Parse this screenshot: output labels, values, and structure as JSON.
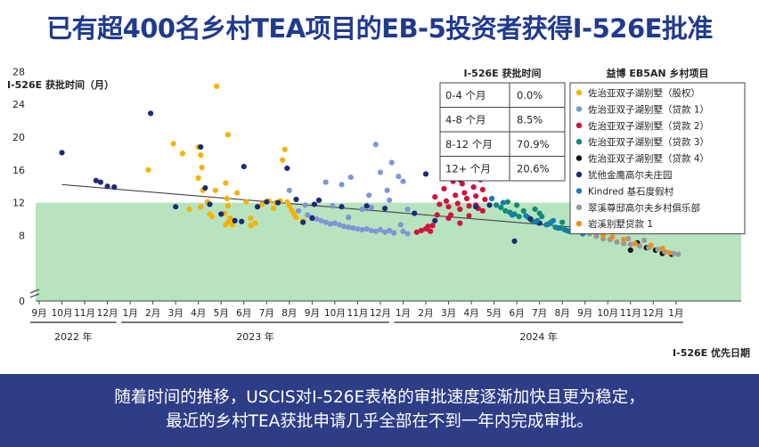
{
  "title": "已有超400名乡村TEA项目的EB-5投资者获得I-526E批准",
  "footer": {
    "line1": "随着时间的推移，USCIS对I-526E表格的审批速度逐渐加快且更为稳定，",
    "line2": "最近的乡村TEA获批申请几乎全部在不到一年内完成审批。"
  },
  "chart_data": {
    "type": "scatter",
    "ylabel": "I-526E 获批时间（月）",
    "xlabel": "I-526E 优先日期",
    "ylim": [
      0,
      28
    ],
    "yticks": [
      0,
      8,
      12,
      16,
      20,
      24,
      28
    ],
    "shaded_band": {
      "from": 0,
      "to": 12,
      "color": "#b7e4bf"
    },
    "trendline": {
      "start": [
        "2022-10",
        14.2
      ],
      "end": [
        "2024-12",
        8.2
      ]
    },
    "x_ticks": [
      "9月",
      "10月",
      "11月",
      "12月",
      "1月",
      "2月",
      "3月",
      "4月",
      "5月",
      "6月",
      "7月",
      "8月",
      "9月",
      "10月",
      "11月",
      "12月",
      "1月",
      "2月",
      "3月",
      "4月",
      "5月",
      "6月",
      "7月",
      "8月",
      "9月",
      "10月",
      "11月",
      "12月",
      "1月"
    ],
    "year_labels": [
      "2022 年",
      "2023 年",
      "2024 年"
    ],
    "approval_table": {
      "header": "I-526E 获批时间",
      "rows": [
        {
          "range": "0-4 个月",
          "pct": "0.0%"
        },
        {
          "range": "4-8 个月",
          "pct": "8.5%"
        },
        {
          "range": "8-12 个月",
          "pct": "70.9%"
        },
        {
          "range": "12+ 个月",
          "pct": "20.6%"
        }
      ]
    },
    "legend_title": "益博 EB5AN 乡村项目",
    "series": [
      {
        "name": "佐治亚双子湖别墅（股权）",
        "color": "#f5b300",
        "points": [
          [
            5.9,
            19.2
          ],
          [
            6.3,
            18
          ],
          [
            6.6,
            11.2
          ],
          [
            7.0,
            18.8
          ],
          [
            7.1,
            17.8
          ],
          [
            7.15,
            16.3
          ],
          [
            7.0,
            15
          ],
          [
            7.2,
            13.5
          ],
          [
            7.1,
            11.5
          ],
          [
            7.4,
            12.1
          ],
          [
            7.5,
            10.6
          ],
          [
            7.6,
            10.3
          ],
          [
            7.8,
            26.2
          ],
          [
            7.75,
            13.5
          ],
          [
            8.3,
            20.3
          ],
          [
            8.2,
            14.4
          ],
          [
            8.25,
            12.5
          ],
          [
            8.3,
            11.6
          ],
          [
            8.15,
            10.7
          ],
          [
            8.4,
            10.1
          ],
          [
            8.3,
            9.6
          ],
          [
            8.2,
            9.3
          ],
          [
            8.5,
            9.3
          ],
          [
            8.7,
            13.2
          ],
          [
            9.1,
            12.1
          ],
          [
            9.3,
            10.1
          ],
          [
            9.5,
            9.5
          ],
          [
            9.8,
            11.8
          ],
          [
            10.1,
            12.2
          ],
          [
            10.3,
            11.3
          ],
          [
            10.7,
            17.2
          ],
          [
            10.8,
            18.5
          ],
          [
            10.6,
            12.2
          ],
          [
            10.9,
            12.1
          ],
          [
            11.1,
            11.1
          ],
          [
            11.3,
            10.2
          ],
          [
            11.6,
            9.8
          ],
          [
            11.0,
            11.6
          ],
          [
            4.8,
            16.0
          ],
          [
            9.3,
            9.2
          ],
          [
            10.4,
            12.0
          ],
          [
            11.2,
            10.6
          ]
        ]
      },
      {
        "name": "佐治亚双子湖别墅（贷款 1）",
        "color": "#7d96d6",
        "points": [
          [
            11.0,
            13.5
          ],
          [
            11.4,
            11.0
          ],
          [
            11.8,
            10.5
          ],
          [
            12.0,
            10.2
          ],
          [
            12.2,
            10.0
          ],
          [
            12.4,
            9.8
          ],
          [
            12.6,
            9.6
          ],
          [
            12.8,
            9.4
          ],
          [
            13.0,
            9.5
          ],
          [
            13.2,
            9.3
          ],
          [
            13.4,
            9.1
          ],
          [
            13.6,
            9.0
          ],
          [
            13.8,
            8.9
          ],
          [
            14.0,
            8.8
          ],
          [
            14.2,
            8.7
          ],
          [
            14.4,
            8.8
          ],
          [
            14.6,
            8.6
          ],
          [
            14.8,
            8.5
          ],
          [
            15.0,
            8.7
          ],
          [
            15.2,
            8.4
          ],
          [
            15.4,
            8.6
          ],
          [
            15.6,
            8.3
          ],
          [
            12.6,
            14.5
          ],
          [
            13.3,
            14.2
          ],
          [
            13.7,
            15.1
          ],
          [
            14.5,
            12.9
          ],
          [
            14.8,
            19.1
          ],
          [
            15.0,
            15.7
          ],
          [
            15.3,
            13.5
          ],
          [
            15.5,
            16.9
          ],
          [
            15.4,
            12.3
          ],
          [
            15.8,
            15.2
          ],
          [
            16.0,
            14.6
          ],
          [
            16.2,
            11.2
          ],
          [
            14.2,
            11.2
          ],
          [
            14.6,
            11.4
          ],
          [
            13.6,
            10.2
          ],
          [
            12.9,
            11.6
          ],
          [
            11.7,
            11.7
          ],
          [
            16.0,
            8.5
          ],
          [
            16.2,
            8.2
          ],
          [
            15.9,
            9.3
          ]
        ]
      },
      {
        "name": "佐治亚双子湖别墅（贷款 2）",
        "color": "#d3113c",
        "points": [
          [
            16.6,
            8.4
          ],
          [
            16.8,
            8.6
          ],
          [
            17.0,
            8.8
          ],
          [
            17.2,
            8.5
          ],
          [
            17.3,
            9.2
          ],
          [
            17.5,
            10.5
          ],
          [
            17.4,
            12.7
          ],
          [
            17.6,
            11.8
          ],
          [
            17.8,
            13.7
          ],
          [
            17.9,
            12.2
          ],
          [
            18.0,
            11.5
          ],
          [
            18.1,
            10.5
          ],
          [
            18.2,
            14.6
          ],
          [
            18.3,
            12.9
          ],
          [
            18.4,
            11.9
          ],
          [
            18.5,
            11.2
          ],
          [
            18.6,
            14.3
          ],
          [
            18.7,
            13.2
          ],
          [
            18.8,
            12.5
          ],
          [
            18.9,
            11.6
          ],
          [
            19.0,
            15.0
          ],
          [
            19.1,
            13.9
          ],
          [
            19.2,
            12.8
          ],
          [
            19.3,
            11.3
          ],
          [
            19.4,
            14.8
          ],
          [
            19.5,
            13.6
          ],
          [
            19.6,
            12.4
          ],
          [
            18.0,
            10.1
          ],
          [
            17.1,
            9.1
          ],
          [
            18.9,
            10.4
          ],
          [
            19.2,
            11.7
          ],
          [
            18.5,
            9.5
          ],
          [
            19.5,
            11.0
          ]
        ]
      },
      {
        "name": "佐治亚双子湖别墅（贷款 3）",
        "color": "#0f8a75",
        "points": [
          [
            20.1,
            11.7
          ],
          [
            20.3,
            11.4
          ],
          [
            20.5,
            11.0
          ],
          [
            20.7,
            10.8
          ],
          [
            20.9,
            10.6
          ],
          [
            21.1,
            10.3
          ],
          [
            21.3,
            11.0
          ],
          [
            21.5,
            10.2
          ],
          [
            21.7,
            9.7
          ],
          [
            21.9,
            9.6
          ],
          [
            22.1,
            10.3
          ],
          [
            22.3,
            9.3
          ],
          [
            22.5,
            9.6
          ],
          [
            22.7,
            9.0
          ],
          [
            22.9,
            8.9
          ],
          [
            23.1,
            8.7
          ],
          [
            23.3,
            8.5
          ],
          [
            21.0,
            11.7
          ],
          [
            21.8,
            11.2
          ],
          [
            22.0,
            10.7
          ],
          [
            20.6,
            12.1
          ],
          [
            23.0,
            9.6
          ]
        ]
      },
      {
        "name": "佐治亚双子湖别墅（贷款 4）",
        "color": "#111111",
        "points": [
          [
            26.0,
            6.2
          ],
          [
            26.3,
            7.1
          ],
          [
            26.7,
            6.5
          ],
          [
            27.1,
            6.2
          ],
          [
            27.4,
            5.8
          ],
          [
            27.8,
            5.7
          ]
        ]
      },
      {
        "name": "犹他金鹰高尔夫庄园",
        "color": "#1c2a78",
        "points": [
          [
            1.0,
            18.1
          ],
          [
            2.5,
            14.7
          ],
          [
            2.7,
            14.5
          ],
          [
            3.0,
            14.0
          ],
          [
            3.3,
            13.9
          ],
          [
            4.9,
            22.9
          ],
          [
            6.0,
            11.5
          ],
          [
            7.1,
            18.8
          ],
          [
            7.3,
            13.8
          ],
          [
            7.5,
            11.8
          ],
          [
            8.0,
            10.6
          ],
          [
            8.6,
            9.8
          ],
          [
            9.0,
            16.4
          ],
          [
            9.6,
            11.5
          ],
          [
            10.0,
            12.1
          ],
          [
            10.9,
            16.2
          ],
          [
            11.3,
            12.4
          ],
          [
            11.6,
            9.6
          ],
          [
            12.1,
            11.8
          ],
          [
            12.3,
            12.3
          ],
          [
            13.3,
            11.5
          ],
          [
            14.4,
            11.6
          ],
          [
            15.2,
            11.3
          ],
          [
            16.5,
            10.7
          ],
          [
            17.0,
            15.5
          ],
          [
            17.4,
            9.8
          ],
          [
            18.5,
            14.8
          ],
          [
            19.2,
            11.5
          ],
          [
            19.8,
            11.7
          ],
          [
            20.9,
            7.3
          ],
          [
            22.0,
            9.5
          ],
          [
            23.5,
            8.7
          ],
          [
            12.0,
            10.1
          ],
          [
            8.9,
            9.7
          ],
          [
            10.5,
            12.0
          ],
          [
            21.6,
            10.0
          ]
        ]
      },
      {
        "name": "Kindred 基石度假村",
        "color": "#1579c0",
        "points": [
          [
            20.4,
            12.0
          ],
          [
            20.8,
            10.5
          ],
          [
            21.4,
            10.4
          ],
          [
            21.9,
            9.8
          ],
          [
            22.4,
            9.4
          ],
          [
            22.8,
            8.9
          ],
          [
            23.2,
            8.6
          ],
          [
            23.6,
            8.5
          ],
          [
            23.9,
            8.2
          ],
          [
            19.9,
            12.5
          ],
          [
            22.6,
            9.8
          ]
        ]
      },
      {
        "name": "翠溪尊邸高尔夫乡村俱乐部",
        "color": "#9a9a9a",
        "points": [
          [
            24.2,
            8.2
          ],
          [
            24.5,
            7.9
          ],
          [
            24.8,
            7.6
          ],
          [
            25.1,
            7.5
          ],
          [
            25.4,
            7.2
          ],
          [
            25.7,
            7.0
          ],
          [
            26.0,
            6.9
          ],
          [
            26.4,
            6.7
          ],
          [
            26.8,
            6.5
          ],
          [
            27.2,
            6.3
          ],
          [
            27.5,
            6.0
          ],
          [
            27.9,
            5.8
          ],
          [
            28.1,
            5.7
          ],
          [
            25.9,
            7.6
          ],
          [
            26.6,
            7.4
          ]
        ]
      },
      {
        "name": "岩溪别墅贷款 1",
        "color": "#f28c20",
        "points": [
          [
            24.8,
            8.0
          ],
          [
            25.2,
            7.8
          ],
          [
            25.7,
            7.5
          ],
          [
            26.2,
            7.0
          ],
          [
            26.9,
            6.8
          ],
          [
            27.4,
            6.4
          ],
          [
            27.7,
            5.9
          ]
        ]
      }
    ]
  }
}
